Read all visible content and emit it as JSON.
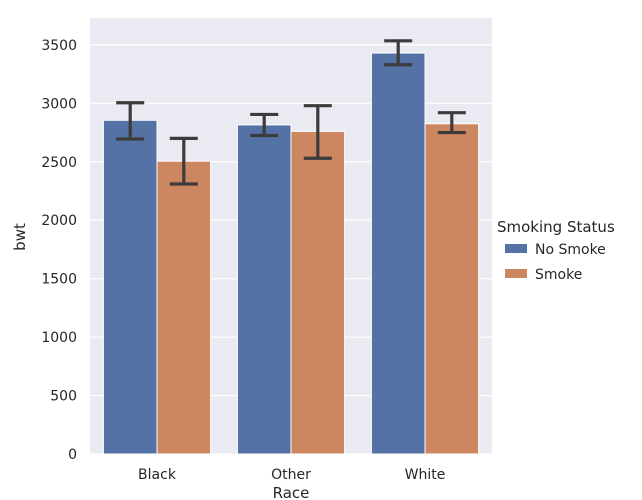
{
  "chart_data": {
    "type": "bar",
    "xlabel": "Race",
    "ylabel": "bwt",
    "categories": [
      "Black",
      "Other",
      "White"
    ],
    "ylim": [
      0,
      3730
    ],
    "yticks": [
      0,
      500,
      1000,
      1500,
      2000,
      2500,
      3000,
      3500
    ],
    "grid": true,
    "legend": {
      "title": "Smoking Status",
      "placement": "right"
    },
    "series": [
      {
        "name": "No Smoke",
        "color": "#5572a6",
        "values": [
          2855,
          2815,
          3430
        ],
        "ci_low": [
          2695,
          2725,
          3330
        ],
        "ci_high": [
          3005,
          2905,
          3535
        ]
      },
      {
        "name": "Smoke",
        "color": "#cc8660",
        "values": [
          2505,
          2760,
          2825
        ],
        "ci_low": [
          2310,
          2530,
          2750
        ],
        "ci_high": [
          2700,
          2980,
          2920
        ]
      }
    ],
    "errorbar_color": "#3c3c3c",
    "background_color": "#eaeaf2"
  }
}
